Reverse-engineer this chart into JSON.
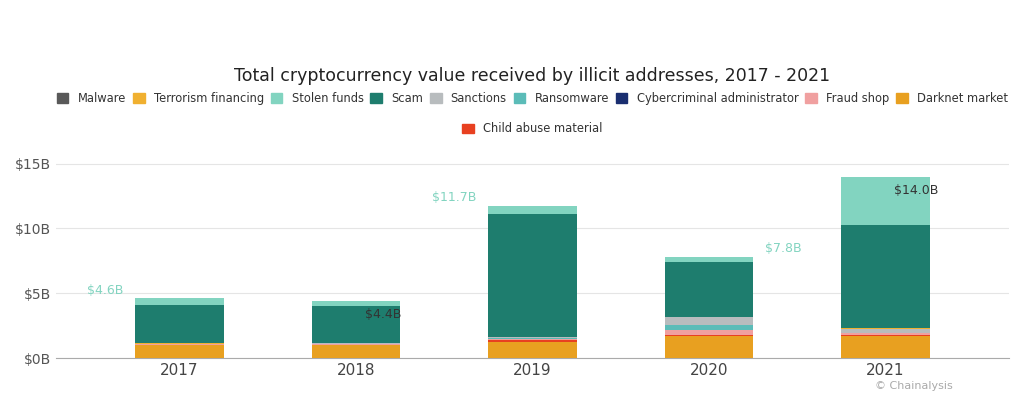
{
  "title": "Total cryptocurrency value received by illicit addresses, 2017 - 2021",
  "years": [
    "2017",
    "2018",
    "2019",
    "2020",
    "2021"
  ],
  "legend_row1": [
    "Malware",
    "Terrorism financing",
    "Stolen funds",
    "Scam",
    "Sanctions",
    "Ransomware",
    "Cybercriminal administrator",
    "Fraud shop",
    "Darknet market"
  ],
  "legend_row2": [
    "Child abuse material"
  ],
  "colors": {
    "Malware": "#595959",
    "Terrorism financing": "#f0b030",
    "Stolen funds": "#82d4c0",
    "Scam": "#1e7d6e",
    "Sanctions": "#b8bcbe",
    "Ransomware": "#5bbcb8",
    "Cybercriminal administrator": "#1a2e70",
    "Fraud shop": "#f0a0a0",
    "Darknet market": "#e8a020",
    "Child abuse material": "#e84020"
  },
  "stack_order": [
    "Darknet market",
    "Child abuse material",
    "Fraud shop",
    "Ransomware",
    "Sanctions",
    "Cybercriminal administrator",
    "Terrorism financing",
    "Malware",
    "Scam",
    "Stolen funds"
  ],
  "values": {
    "Darknet market": [
      1.02,
      1.0,
      1.28,
      1.68,
      1.68
    ],
    "Child abuse material": [
      0.02,
      0.02,
      0.09,
      0.09,
      0.09
    ],
    "Fraud shop": [
      0.04,
      0.08,
      0.13,
      0.43,
      0.13
    ],
    "Ransomware": [
      0.01,
      0.01,
      0.04,
      0.32,
      0.05
    ],
    "Sanctions": [
      0.02,
      0.02,
      0.09,
      0.62,
      0.26
    ],
    "Cybercriminal administrator": [
      0.01,
      0.01,
      0.01,
      0.01,
      0.07
    ],
    "Terrorism financing": [
      0.01,
      0.01,
      0.01,
      0.01,
      0.01
    ],
    "Malware": [
      0.01,
      0.01,
      0.01,
      0.01,
      0.01
    ],
    "Scam": [
      2.97,
      2.82,
      9.46,
      4.23,
      7.98
    ],
    "Stolen funds": [
      0.49,
      0.42,
      0.58,
      0.38,
      3.72
    ]
  },
  "total_labels": [
    "$4.6B",
    "$4.4B",
    "$11.7B",
    "$7.8B",
    "$14.0B"
  ],
  "label_ha": [
    "right",
    "left",
    "right",
    "left",
    "left"
  ],
  "label_xoff": [
    -0.32,
    0.05,
    -0.32,
    0.32,
    0.05
  ],
  "label_yoff": [
    0.15,
    -0.55,
    0.15,
    0.15,
    -0.55
  ],
  "label_va": [
    "bottom",
    "top",
    "bottom",
    "bottom",
    "top"
  ],
  "label_colors": [
    "#82d4c0",
    "#333333",
    "#82d4c0",
    "#82d4c0",
    "#333333"
  ],
  "ylim": [
    0,
    16
  ],
  "yticks": [
    0,
    5,
    10,
    15
  ],
  "ytick_labels": [
    "$0B",
    "$5B",
    "$10B",
    "$15B"
  ],
  "background_color": "#ffffff",
  "grid_color": "#e5e5e5",
  "watermark": "© Chainalysis",
  "bar_width": 0.5
}
